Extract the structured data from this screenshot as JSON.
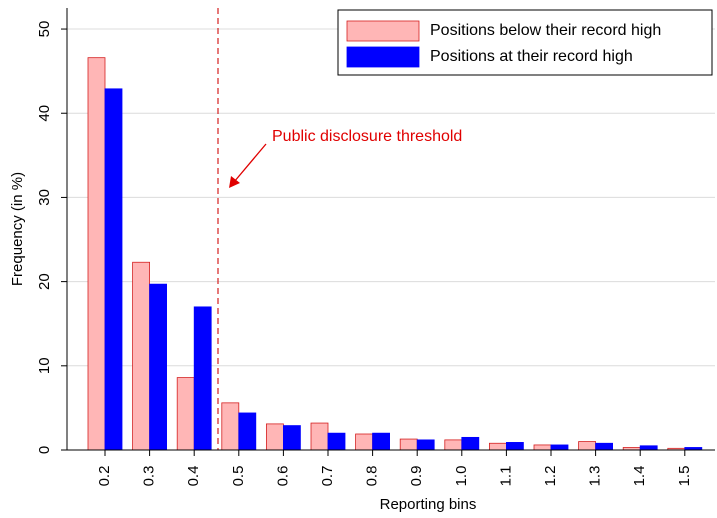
{
  "chart_data": {
    "type": "bar",
    "x_label": "Reporting bins",
    "y_label": "Frequency (in %)",
    "annotation": "Public disclosure threshold",
    "categories": [
      "0.2",
      "0.3",
      "0.4",
      "0.5",
      "0.6",
      "0.7",
      "0.8",
      "0.9",
      "1.0",
      "1.1",
      "1.2",
      "1.3",
      "1.4",
      "1.5"
    ],
    "series": [
      {
        "name": "Positions below their record high",
        "color": "#ffb6b6",
        "edge": "#d42020",
        "values": [
          46.6,
          22.3,
          8.6,
          5.6,
          3.1,
          3.2,
          1.9,
          1.3,
          1.2,
          0.8,
          0.6,
          1.0,
          0.3,
          0.2
        ]
      },
      {
        "name": "Positions at their record high",
        "color": "#0000ff",
        "edge": "#0000ff",
        "values": [
          42.9,
          19.7,
          17.0,
          4.4,
          2.9,
          2.0,
          2.0,
          1.2,
          1.5,
          0.9,
          0.6,
          0.8,
          0.5,
          0.3
        ]
      }
    ],
    "ylim": [
      0,
      52.5
    ],
    "yticks": [
      0,
      10,
      20,
      30,
      40,
      50
    ],
    "grid": true,
    "legend": "upper right"
  }
}
